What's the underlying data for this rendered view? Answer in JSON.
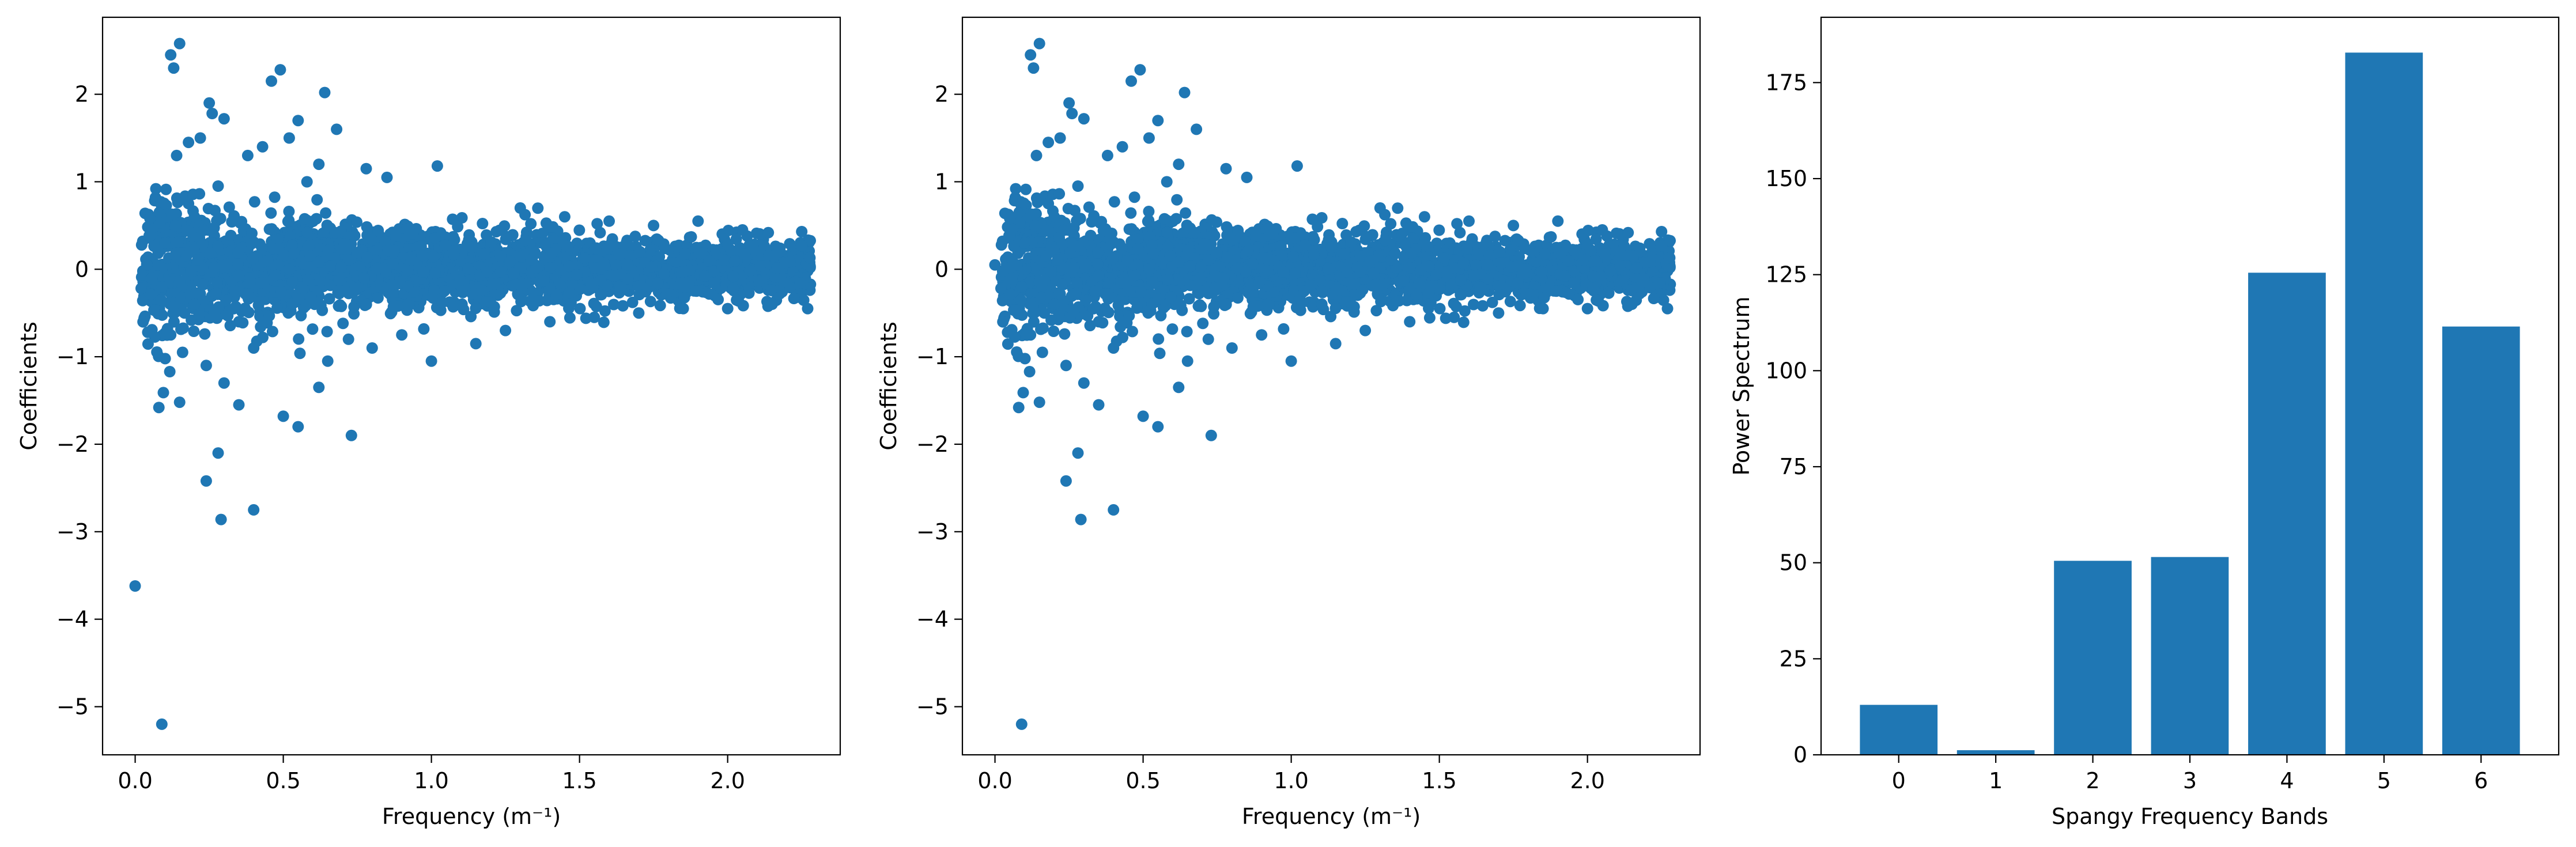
{
  "chart_data": [
    {
      "type": "scatter",
      "xlabel": "Frequency (m⁻¹)",
      "ylabel": "Coefficients",
      "xlim": [
        -0.11,
        2.38
      ],
      "ylim": [
        -5.55,
        2.88
      ],
      "xticks": [
        0.0,
        0.5,
        1.0,
        1.5,
        2.0
      ],
      "xtick_labels": [
        "0.0",
        "0.5",
        "1.0",
        "1.5",
        "2.0"
      ],
      "yticks": [
        -5,
        -4,
        -3,
        -2,
        -1,
        0,
        1,
        2
      ],
      "ytick_labels": [
        "−5",
        "−4",
        "−3",
        "−2",
        "−1",
        "0",
        "1",
        "2"
      ],
      "color": "#1f77b4",
      "grid": false,
      "points": [
        [
          0.0,
          -3.62
        ],
        [
          0.09,
          -5.2
        ],
        [
          0.08,
          -1.58
        ],
        [
          0.15,
          -1.52
        ],
        [
          0.24,
          -2.42
        ],
        [
          0.28,
          -2.1
        ],
        [
          0.29,
          -2.86
        ],
        [
          0.4,
          -2.75
        ],
        [
          0.73,
          -1.9
        ],
        [
          0.55,
          -1.8
        ],
        [
          0.5,
          -1.68
        ],
        [
          0.35,
          -1.55
        ],
        [
          0.62,
          -1.35
        ],
        [
          0.12,
          2.45
        ],
        [
          0.13,
          2.3
        ],
        [
          0.15,
          2.58
        ],
        [
          0.46,
          2.15
        ],
        [
          0.49,
          2.28
        ],
        [
          0.64,
          2.02
        ],
        [
          0.05,
          0.58
        ],
        [
          0.07,
          0.92
        ],
        [
          0.04,
          0.05
        ],
        [
          0.09,
          -0.2
        ],
        [
          0.1,
          0.3
        ],
        [
          0.14,
          1.3
        ],
        [
          0.18,
          1.45
        ],
        [
          0.22,
          1.5
        ],
        [
          0.26,
          1.78
        ],
        [
          0.3,
          1.72
        ],
        [
          0.25,
          1.9
        ],
        [
          0.18,
          0.75
        ],
        [
          0.2,
          0.6
        ],
        [
          0.28,
          0.95
        ],
        [
          0.12,
          -0.75
        ],
        [
          0.16,
          -0.95
        ],
        [
          0.2,
          -0.4
        ],
        [
          0.24,
          -1.1
        ],
        [
          0.3,
          -1.3
        ],
        [
          0.35,
          -0.6
        ],
        [
          0.4,
          -0.9
        ],
        [
          0.38,
          1.3
        ],
        [
          0.43,
          1.4
        ],
        [
          0.55,
          1.7
        ],
        [
          0.52,
          1.5
        ],
        [
          0.58,
          1.0
        ],
        [
          0.62,
          1.2
        ],
        [
          0.68,
          1.6
        ],
        [
          0.78,
          1.15
        ],
        [
          0.85,
          1.05
        ],
        [
          1.02,
          1.18
        ],
        [
          0.65,
          -1.05
        ],
        [
          0.72,
          -0.8
        ],
        [
          0.8,
          -0.9
        ],
        [
          0.9,
          -0.75
        ],
        [
          1.0,
          -1.05
        ],
        [
          1.15,
          -0.85
        ],
        [
          1.25,
          -0.7
        ],
        [
          1.3,
          0.7
        ],
        [
          1.45,
          0.6
        ],
        [
          1.6,
          0.55
        ],
        [
          1.75,
          0.5
        ],
        [
          1.9,
          0.55
        ],
        [
          2.05,
          0.45
        ],
        [
          2.25,
          0.43
        ],
        [
          1.4,
          -0.6
        ],
        [
          1.55,
          -0.55
        ],
        [
          1.7,
          -0.5
        ],
        [
          1.85,
          -0.45
        ],
        [
          2.0,
          -0.45
        ],
        [
          2.15,
          -0.4
        ],
        [
          2.27,
          -0.45
        ]
      ]
    },
    {
      "type": "scatter",
      "xlabel": "Frequency (m⁻¹)",
      "ylabel": "Coefficients",
      "xlim": [
        -0.11,
        2.38
      ],
      "ylim": [
        -5.55,
        2.88
      ],
      "xticks": [
        0.0,
        0.5,
        1.0,
        1.5,
        2.0
      ],
      "xtick_labels": [
        "0.0",
        "0.5",
        "1.0",
        "1.5",
        "2.0"
      ],
      "yticks": [
        -5,
        -4,
        -3,
        -2,
        -1,
        0,
        1,
        2
      ],
      "ytick_labels": [
        "−5",
        "−4",
        "−3",
        "−2",
        "−1",
        "0",
        "1",
        "2"
      ],
      "color": "#1f77b4",
      "grid": false,
      "points": [
        [
          0.09,
          -5.2
        ],
        [
          0.08,
          -1.58
        ],
        [
          0.15,
          -1.52
        ],
        [
          0.24,
          -2.42
        ],
        [
          0.28,
          -2.1
        ],
        [
          0.29,
          -2.86
        ],
        [
          0.4,
          -2.75
        ],
        [
          0.73,
          -1.9
        ],
        [
          0.55,
          -1.8
        ],
        [
          0.5,
          -1.68
        ],
        [
          0.35,
          -1.55
        ],
        [
          0.62,
          -1.35
        ],
        [
          0.12,
          2.45
        ],
        [
          0.13,
          2.3
        ],
        [
          0.15,
          2.58
        ],
        [
          0.46,
          2.15
        ],
        [
          0.49,
          2.28
        ],
        [
          0.64,
          2.02
        ],
        [
          0.05,
          0.58
        ],
        [
          0.07,
          0.92
        ],
        [
          0.0,
          0.05
        ],
        [
          0.09,
          -0.2
        ],
        [
          0.1,
          0.3
        ],
        [
          0.14,
          1.3
        ],
        [
          0.18,
          1.45
        ],
        [
          0.22,
          1.5
        ],
        [
          0.26,
          1.78
        ],
        [
          0.3,
          1.72
        ],
        [
          0.25,
          1.9
        ],
        [
          0.18,
          0.75
        ],
        [
          0.2,
          0.6
        ],
        [
          0.28,
          0.95
        ],
        [
          0.12,
          -0.75
        ],
        [
          0.16,
          -0.95
        ],
        [
          0.2,
          -0.4
        ],
        [
          0.24,
          -1.1
        ],
        [
          0.3,
          -1.3
        ],
        [
          0.35,
          -0.6
        ],
        [
          0.4,
          -0.9
        ],
        [
          0.38,
          1.3
        ],
        [
          0.43,
          1.4
        ],
        [
          0.55,
          1.7
        ],
        [
          0.52,
          1.5
        ],
        [
          0.58,
          1.0
        ],
        [
          0.62,
          1.2
        ],
        [
          0.68,
          1.6
        ],
        [
          0.78,
          1.15
        ],
        [
          0.85,
          1.05
        ],
        [
          1.02,
          1.18
        ],
        [
          0.65,
          -1.05
        ],
        [
          0.72,
          -0.8
        ],
        [
          0.8,
          -0.9
        ],
        [
          0.9,
          -0.75
        ],
        [
          1.0,
          -1.05
        ],
        [
          1.15,
          -0.85
        ],
        [
          1.25,
          -0.7
        ],
        [
          1.3,
          0.7
        ],
        [
          1.45,
          0.6
        ],
        [
          1.6,
          0.55
        ],
        [
          1.75,
          0.5
        ],
        [
          1.9,
          0.55
        ],
        [
          2.05,
          0.45
        ],
        [
          2.25,
          0.43
        ],
        [
          1.4,
          -0.6
        ],
        [
          1.55,
          -0.55
        ],
        [
          1.7,
          -0.5
        ],
        [
          1.85,
          -0.45
        ],
        [
          2.0,
          -0.45
        ],
        [
          2.15,
          -0.4
        ],
        [
          2.27,
          -0.45
        ]
      ]
    },
    {
      "type": "bar",
      "xlabel": "Spangy Frequency Bands",
      "ylabel": "Power Spectrum",
      "categories": [
        "0",
        "1",
        "2",
        "3",
        "4",
        "5",
        "6"
      ],
      "values": [
        13.0,
        1.2,
        50.5,
        51.5,
        125.5,
        182.8,
        111.5
      ],
      "ylim": [
        0,
        192
      ],
      "yticks": [
        0,
        25,
        50,
        75,
        100,
        125,
        150,
        175
      ],
      "ytick_labels": [
        "0",
        "25",
        "50",
        "75",
        "100",
        "125",
        "150",
        "175"
      ],
      "color": "#1f77b4",
      "grid": false
    }
  ]
}
